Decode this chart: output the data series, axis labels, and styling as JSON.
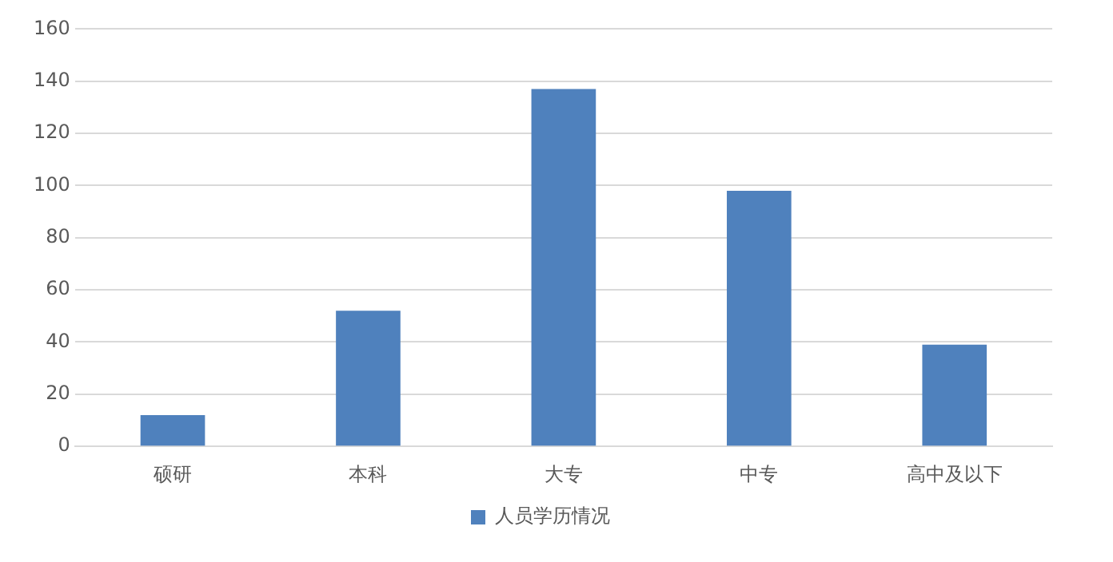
{
  "chart_data": {
    "type": "bar",
    "categories": [
      "硕研",
      "本科",
      "大专",
      "中专",
      "高中及以下"
    ],
    "series": [
      {
        "name": "人员学历情况",
        "color": "#4f81bd",
        "values": [
          12,
          52,
          137,
          98,
          39
        ]
      }
    ],
    "ylim": [
      0,
      160
    ],
    "yticks": [
      0,
      20,
      40,
      60,
      80,
      100,
      120,
      140,
      160
    ],
    "grid": "y",
    "legend": "bottom"
  }
}
